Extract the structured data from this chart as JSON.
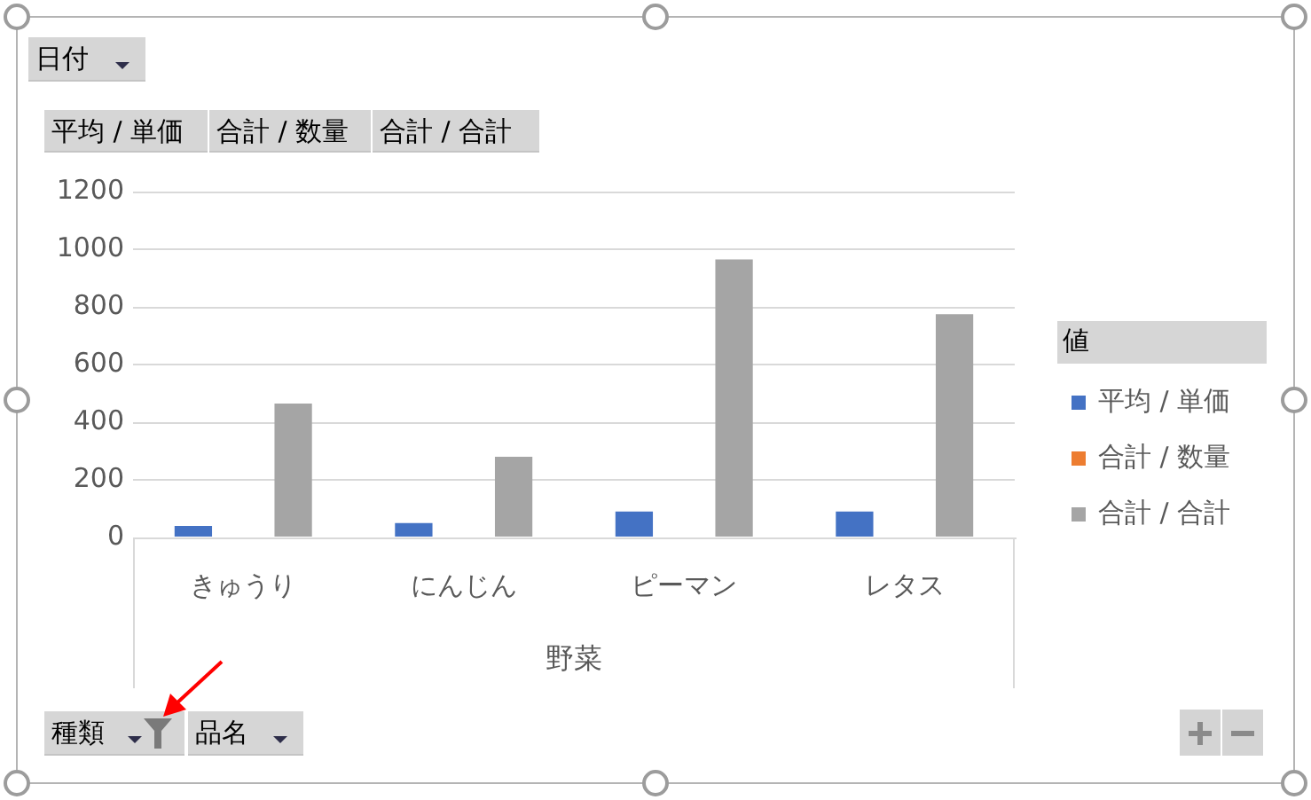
{
  "chart_data": {
    "type": "bar",
    "categories": [
      "きゅうり",
      "にんじん",
      "ピーマン",
      "レタス"
    ],
    "series": [
      {
        "name": "平均 / 単価",
        "color": "#4472c4",
        "values": [
          40,
          50,
          90,
          90
        ]
      },
      {
        "name": "合計 / 数量",
        "color": "#ed7d31",
        "values": [
          0,
          0,
          0,
          0
        ]
      },
      {
        "name": "合計 / 合計",
        "color": "#a5a5a5",
        "values": [
          465,
          280,
          965,
          775
        ]
      }
    ],
    "xlabel": "野菜",
    "legend_title": "値",
    "ylim": [
      0,
      1200
    ],
    "yticks": [
      0,
      200,
      400,
      600,
      800,
      1000,
      1200
    ],
    "grid": "y",
    "legend": "right",
    "annotations": [
      "日付",
      "平均 / 単価",
      "合計 / 数量",
      "合計 / 合計",
      "種類",
      "品名"
    ]
  }
}
